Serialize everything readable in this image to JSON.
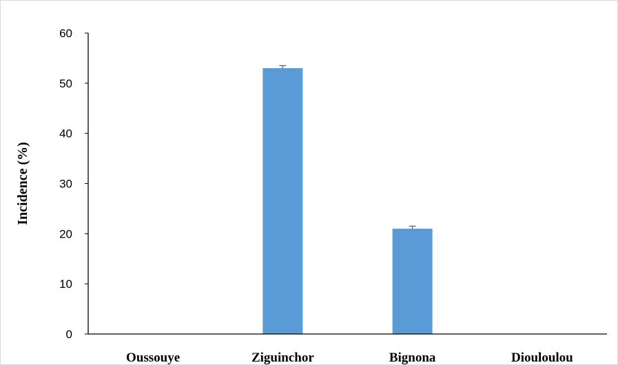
{
  "chart_data": {
    "type": "bar",
    "title": "",
    "xlabel": "",
    "ylabel": "Incidence (%)",
    "categories": [
      "Oussouye",
      "Ziguinchor",
      "Bignona",
      "Diouloulou"
    ],
    "series": [
      {
        "values": [
          0,
          53,
          21,
          0
        ],
        "error": [
          0,
          0.5,
          0.5,
          0
        ],
        "color": "#5b9bd5"
      }
    ],
    "ylim": [
      0,
      60
    ],
    "yticks": [
      0,
      10,
      20,
      30,
      40,
      50,
      60
    ],
    "grid": false,
    "legend": "none",
    "error_bar_color": "#595959",
    "axis_color": "#000000"
  }
}
